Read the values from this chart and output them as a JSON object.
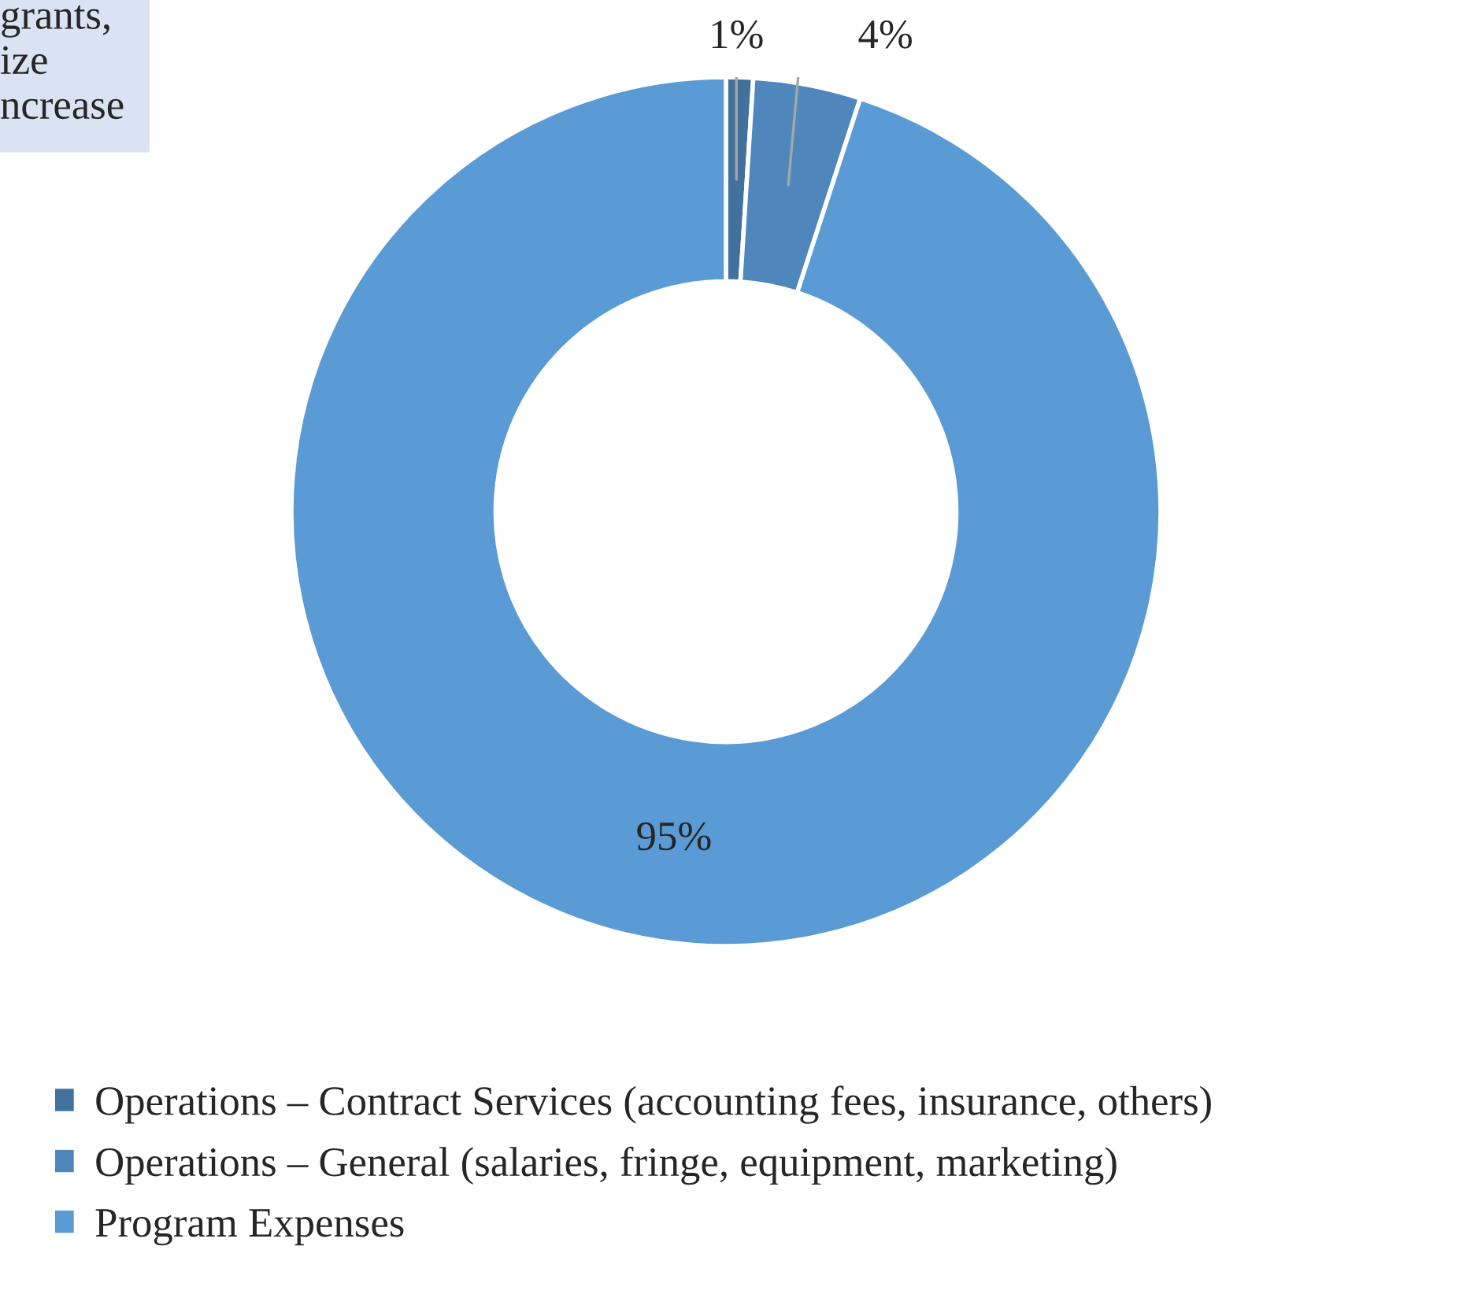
{
  "chart_data": {
    "type": "donut",
    "categories": [
      "Operations – Contract Services (accounting fees, insurance, others)",
      "Operations – General (salaries, fringe, equipment, marketing)",
      "Program Expenses"
    ],
    "values": [
      1,
      4,
      95
    ],
    "colors": [
      "#41719c",
      "#4f87bd",
      "#5b9bd5"
    ],
    "value_labels": [
      "1%",
      "4%",
      "95%"
    ],
    "legend": "bottom",
    "annotations": [
      "grants,\nize\nncrease"
    ]
  }
}
